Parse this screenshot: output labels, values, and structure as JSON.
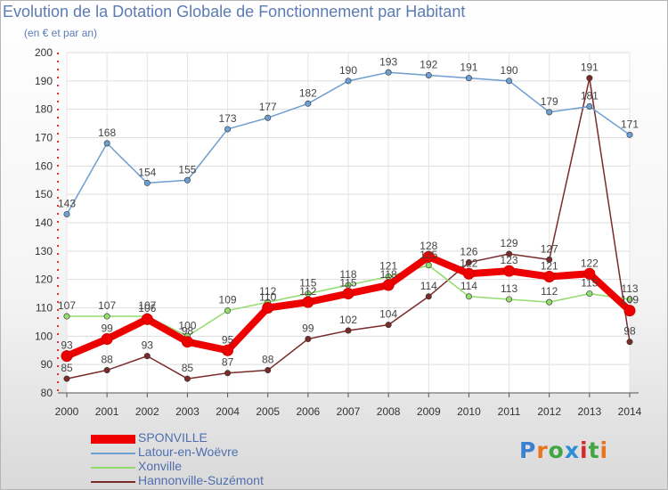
{
  "title": "Evolution de la Dotation Globale de Fonctionnement par Habitant",
  "subtitle": "(en € et par an)",
  "logo": "Proxiti",
  "colors": {
    "SPONVILLE": "#ee0000",
    "Latour-en-Woëvre": "#6e9fd1",
    "Xonville": "#92dc6e",
    "Hannonville-Suzémont": "#7b2a2a"
  },
  "chart_data": {
    "type": "line",
    "x": [
      "2000",
      "2001",
      "2002",
      "2003",
      "2004",
      "2005",
      "2006",
      "2007",
      "2008",
      "2009",
      "2010",
      "2011",
      "2012",
      "2013",
      "2014"
    ],
    "ylim": [
      80,
      200
    ],
    "yticks": [
      80,
      90,
      100,
      110,
      120,
      130,
      140,
      150,
      160,
      170,
      180,
      190,
      200
    ],
    "grid": true,
    "legend_position": "bottom-left",
    "series": [
      {
        "name": "SPONVILLE",
        "values": [
          93,
          99,
          106,
          98,
          95,
          110,
          112,
          115,
          118,
          128,
          122,
          123,
          121,
          122,
          109
        ]
      },
      {
        "name": "Latour-en-Woëvre",
        "values": [
          143,
          168,
          154,
          155,
          173,
          177,
          182,
          190,
          193,
          192,
          191,
          190,
          179,
          181,
          171
        ]
      },
      {
        "name": "Xonville",
        "values": [
          107,
          107,
          107,
          100,
          109,
          112,
          115,
          118,
          121,
          125,
          114,
          113,
          112,
          115,
          113
        ]
      },
      {
        "name": "Hannonville-Suzémont",
        "values": [
          85,
          88,
          93,
          85,
          87,
          88,
          99,
          102,
          104,
          114,
          126,
          129,
          127,
          191,
          98
        ]
      }
    ]
  }
}
